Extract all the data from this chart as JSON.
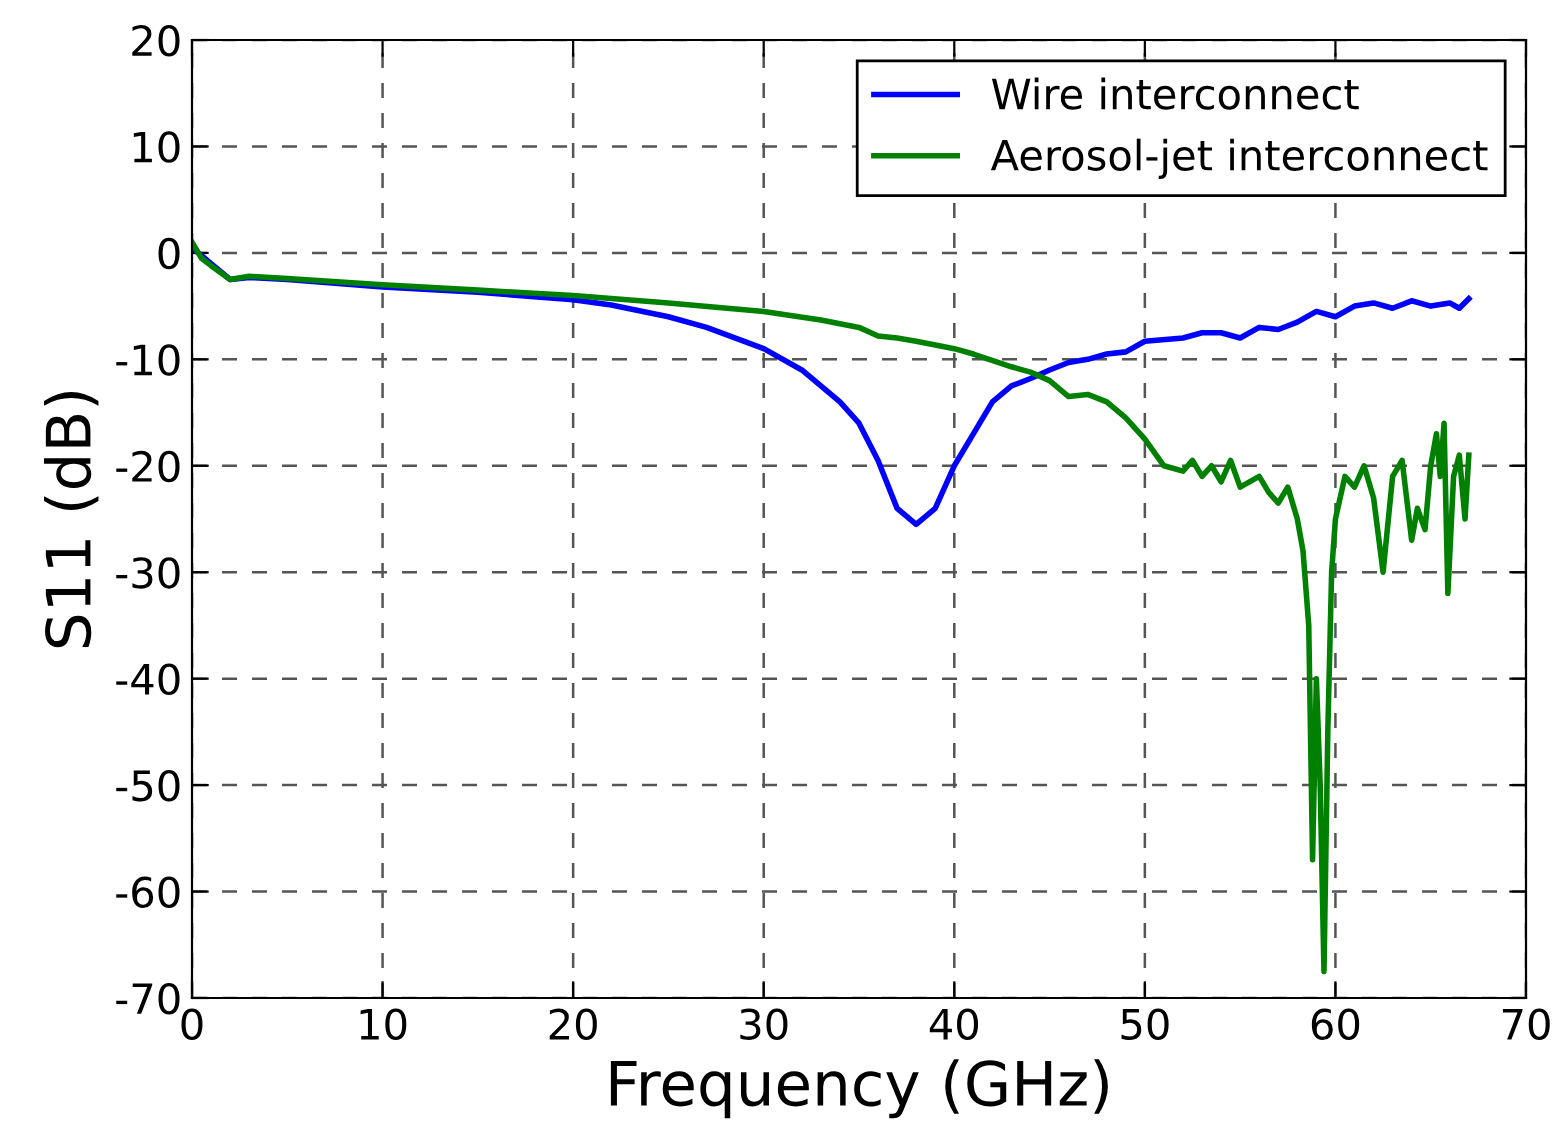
{
  "chart_data": {
    "type": "line",
    "xlabel": "Frequency (GHz)",
    "ylabel": "S11 (dB)",
    "xlim": [
      0,
      70
    ],
    "ylim": [
      -70,
      20
    ],
    "xticks": [
      0,
      10,
      20,
      30,
      40,
      50,
      60,
      70
    ],
    "yticks": [
      20,
      10,
      0,
      -10,
      -20,
      -30,
      -40,
      -50,
      -60,
      -70
    ],
    "grid": true,
    "legend": "top right",
    "line_style": "solid",
    "series": [
      {
        "name": "Wire interconnect",
        "color": "#0000ff",
        "x": [
          0,
          1,
          2,
          3,
          5,
          10,
          15,
          20,
          22,
          25,
          27,
          30,
          32,
          34,
          35,
          36,
          37,
          38,
          39,
          40,
          41,
          42,
          43,
          44,
          45,
          46,
          47,
          48,
          49,
          50,
          52,
          53,
          54,
          55,
          56,
          57,
          58,
          59,
          60,
          61,
          62,
          63,
          64,
          65,
          66,
          66.5,
          67
        ],
        "values": [
          0.5,
          -1,
          -2.5,
          -2.3,
          -2.5,
          -3.2,
          -3.7,
          -4.4,
          -4.9,
          -6,
          -7,
          -9,
          -11,
          -14,
          -16,
          -19.5,
          -24,
          -25.5,
          -24,
          -20,
          -17,
          -14,
          -12.5,
          -11.8,
          -11,
          -10.3,
          -10,
          -9.5,
          -9.3,
          -8.3,
          -8,
          -7.5,
          -7.5,
          -8,
          -7,
          -7.2,
          -6.5,
          -5.5,
          -6,
          -5,
          -4.7,
          -5.2,
          -4.5,
          -5,
          -4.7,
          -5.2,
          -4.3
        ]
      },
      {
        "name": "Aerosol-jet interconnect",
        "color": "#008000",
        "x": [
          0,
          0.5,
          1,
          2,
          3,
          5,
          10,
          15,
          20,
          25,
          30,
          33,
          35,
          36,
          37,
          38,
          40,
          41,
          43,
          44,
          45,
          46,
          47,
          48,
          49,
          50,
          51,
          52,
          52.5,
          53,
          53.5,
          54,
          54.5,
          55,
          56,
          56.5,
          57,
          57.5,
          58,
          58.3,
          58.6,
          58.8,
          59,
          59.2,
          59.4,
          59.6,
          59.8,
          60,
          60.5,
          61,
          61.5,
          62,
          62.5,
          63,
          63.5,
          64,
          64.3,
          64.7,
          65,
          65.3,
          65.5,
          65.7,
          65.9,
          66.2,
          66.5,
          66.8,
          67
        ],
        "values": [
          1,
          -0.5,
          -1.2,
          -2.5,
          -2.2,
          -2.4,
          -3,
          -3.5,
          -4,
          -4.7,
          -5.5,
          -6.3,
          -7,
          -7.8,
          -8,
          -8.3,
          -9,
          -9.5,
          -10.7,
          -11.2,
          -12,
          -13.5,
          -13.3,
          -14,
          -15.5,
          -17.5,
          -20,
          -20.5,
          -19.5,
          -21,
          -20,
          -21.5,
          -19.5,
          -22,
          -21,
          -22.5,
          -23.5,
          -22,
          -25,
          -28,
          -35,
          -57,
          -40,
          -50,
          -67.5,
          -45,
          -30,
          -25,
          -21,
          -22,
          -20,
          -23,
          -30,
          -21,
          -19.5,
          -27,
          -24,
          -26,
          -20,
          -17,
          -21,
          -16,
          -32,
          -21,
          -19,
          -25,
          -19
        ]
      }
    ]
  }
}
